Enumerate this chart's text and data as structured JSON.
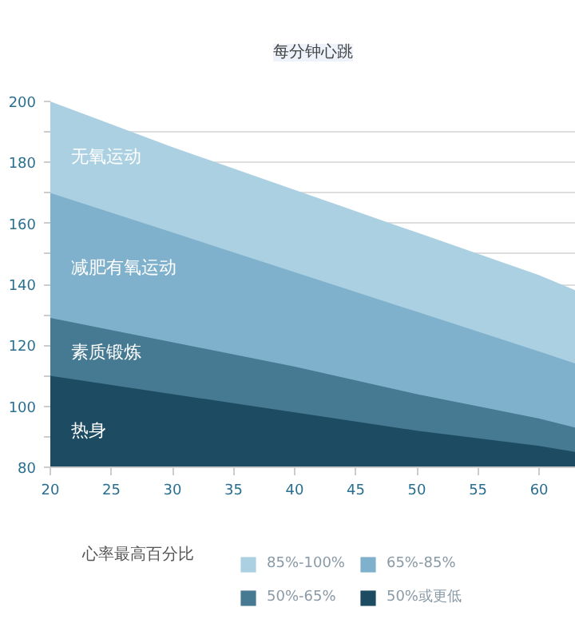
{
  "chart_data": {
    "type": "area",
    "title": "每分钟心跳",
    "legend_title": "心率最高百分比",
    "x": [
      20,
      30,
      40,
      50,
      60,
      63
    ],
    "series": [
      {
        "name": "85%-100%",
        "color": "#abd0e2",
        "values": [
          200,
          185,
          171,
          157,
          143,
          138
        ]
      },
      {
        "name": "65%-85%",
        "color": "#80b1cc",
        "values": [
          170,
          157,
          144,
          131,
          118,
          114
        ]
      },
      {
        "name": "50%-65%",
        "color": "#457a92",
        "values": [
          129,
          121,
          113,
          104,
          96,
          93
        ]
      },
      {
        "name": "50%或更低",
        "color": "#1d4b62",
        "values": [
          110,
          104,
          98,
          92,
          87,
          85
        ]
      }
    ],
    "annotations": [
      "无氧运动",
      "减肥有氧运动",
      "素质锻炼",
      "热身"
    ],
    "xlim": [
      20,
      63
    ],
    "xticks": [
      20,
      25,
      30,
      35,
      40,
      45,
      50,
      55,
      60
    ],
    "ylim": [
      80,
      200
    ],
    "yticks": [
      80,
      {
        "value": 90,
        "label": null
      },
      100,
      {
        "value": 110,
        "label": null
      },
      120,
      {
        "value": 130,
        "label": null
      },
      140,
      {
        "value": 150,
        "label": null
      },
      160,
      {
        "value": 170,
        "label": null
      },
      180,
      {
        "value": 190,
        "label": null
      },
      200
    ],
    "grid": "y",
    "legend": "bottom"
  }
}
